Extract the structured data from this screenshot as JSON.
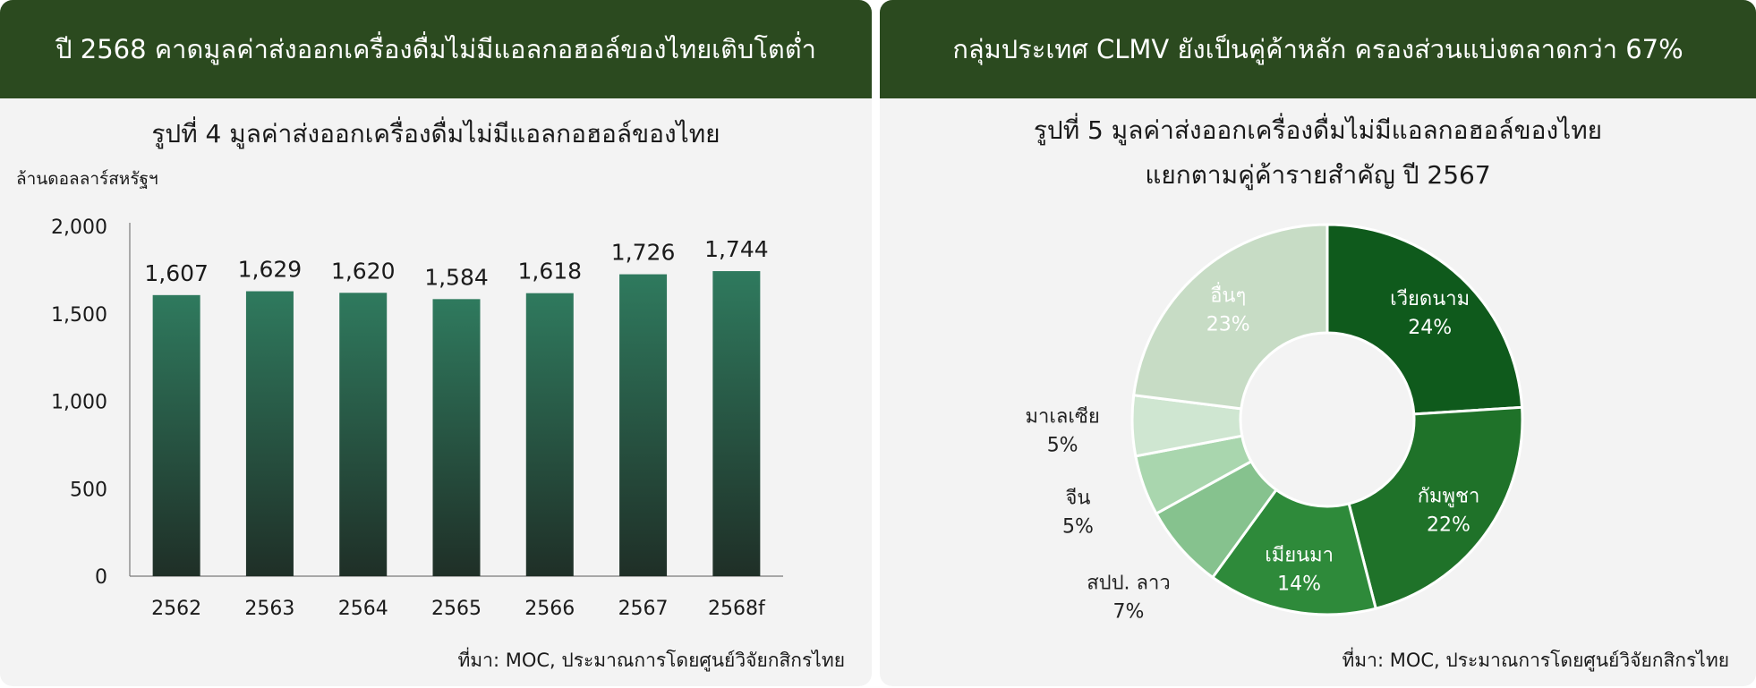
{
  "left_panel": {
    "banner": "ปี 2568 คาดมูลค่าส่งออกเครื่องดื่มไม่มีแอลกอฮอล์ของไทยเติบโตต่ำ",
    "figure_title": "รูปที่ 4  มูลค่าส่งออกเครื่องดื่มไม่มีแอลกอฮอล์ของไทย",
    "source": "ที่มา: MOC, ประมาณการโดยศูนย์วิจัยกสิกรไทย"
  },
  "right_panel": {
    "banner": "กลุ่มประเทศ CLMV ยังเป็นคู่ค้าหลัก ครองส่วนแบ่งตลาดกว่า 67%",
    "figure_title_line1": "รูปที่ 5 มูลค่าส่งออกเครื่องดื่มไม่มีแอลกอฮอล์ของไทย",
    "figure_title_line2": "แยกตามคู่ค้ารายสำคัญ  ปี 2567",
    "source": "ที่มา: MOC, ประมาณการโดยศูนย์วิจัยกสิกรไทย"
  },
  "chart_data": [
    {
      "type": "bar",
      "title": "รูปที่ 4  มูลค่าส่งออกเครื่องดื่มไม่มีแอลกอฮอล์ของไทย",
      "ylabel": "ล้านดอลลาร์สหรัฐฯ",
      "xlabel": "",
      "categories": [
        "2562",
        "2563",
        "2564",
        "2565",
        "2566",
        "2567",
        "2568f"
      ],
      "values": [
        1607,
        1629,
        1620,
        1584,
        1618,
        1726,
        1744
      ],
      "value_labels": [
        "1,607",
        "1,629",
        "1,620",
        "1,584",
        "1,618",
        "1,726",
        "1,744"
      ],
      "ylim": [
        0,
        2000
      ],
      "yticks": [
        0,
        500,
        1000,
        1500,
        2000
      ],
      "ytick_labels": [
        "0",
        "500",
        "1,000",
        "1,500",
        "2,000"
      ],
      "grid": false,
      "colors": {
        "bar_top": "#2f7a5e",
        "bar_bottom": "#1f2f27"
      }
    },
    {
      "type": "pie",
      "style": "donut",
      "title": "รูปที่ 5 มูลค่าส่งออกเครื่องดื่มไม่มีแอลกอฮอล์ของไทย แยกตามคู่ค้ารายสำคัญ  ปี 2567",
      "slices": [
        {
          "label": "เวียดนาม",
          "value": 24,
          "value_label": "24%",
          "color": "#0f5a1c",
          "label_inside": true,
          "label_color": "#ffffff"
        },
        {
          "label": "กัมพูชา",
          "value": 22,
          "value_label": "22%",
          "color": "#1f7229",
          "label_inside": true,
          "label_color": "#ffffff"
        },
        {
          "label": "เมียนมา",
          "value": 14,
          "value_label": "14%",
          "color": "#2e8a3a",
          "label_inside": true,
          "label_color": "#ffffff"
        },
        {
          "label": "สปป. ลาว",
          "value": 7,
          "value_label": "7%",
          "color": "#86c28e",
          "label_inside": false,
          "label_color": "#222222"
        },
        {
          "label": "จีน",
          "value": 5,
          "value_label": "5%",
          "color": "#a9d6ae",
          "label_inside": false,
          "label_color": "#222222"
        },
        {
          "label": "มาเลเซีย",
          "value": 5,
          "value_label": "5%",
          "color": "#cfe6d1",
          "label_inside": false,
          "label_color": "#222222"
        },
        {
          "label": "อื่นๆ",
          "value": 23,
          "value_label": "23%",
          "color": "#c7dcc5",
          "label_inside": true,
          "label_color": "#ffffff"
        }
      ]
    }
  ]
}
